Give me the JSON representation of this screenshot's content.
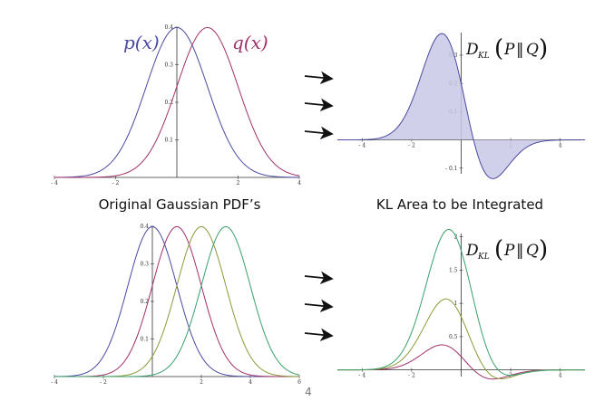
{
  "colors": {
    "p": "#4a4aa0",
    "q": "#a0306a",
    "q2": "#8a9a3a",
    "q3": "#3aa06a",
    "fill": "#c8c8e8",
    "axis": "#333333",
    "arrow": "#111111"
  },
  "captions": {
    "left": "Original Gaussian PDF’s",
    "right": "KL Area to be Integrated"
  },
  "labels": {
    "p": "p(x)",
    "q": "q(x)",
    "kl": {
      "D": "D",
      "sub": "KL",
      "open": "(",
      "P": "P",
      "bars": "‖",
      "Q": "Q",
      "close": ")"
    }
  },
  "page_number": "4",
  "chart_data": [
    {
      "type": "line",
      "panel": "top-left",
      "x_domain": [
        -4,
        4
      ],
      "ylim": [
        0,
        0.4
      ],
      "xticks": [
        -4,
        -2,
        2,
        4
      ],
      "yticks": [
        0.1,
        0.2,
        0.3,
        0.4
      ],
      "series": [
        {
          "name": "p(x)",
          "mean": 0,
          "sd": 1,
          "color_key": "p"
        },
        {
          "name": "q(x)",
          "mean": 1,
          "sd": 1,
          "color_key": "q"
        }
      ]
    },
    {
      "type": "area",
      "panel": "top-right",
      "x_domain": [
        -5,
        5
      ],
      "ylim": [
        -0.12,
        0.38
      ],
      "xticks": [
        -4,
        -2,
        2,
        4
      ],
      "yticks": [
        -0.1,
        0.1,
        0.2,
        0.3
      ],
      "integrand": "p(x) ln(p(x)/q(x))",
      "p": {
        "mean": 0,
        "sd": 1
      },
      "q": {
        "mean": 1,
        "sd": 1
      }
    },
    {
      "type": "line",
      "panel": "bottom-left",
      "x_domain": [
        -4,
        6
      ],
      "ylim": [
        0,
        0.4
      ],
      "xticks": [
        -4,
        -2,
        2,
        4,
        6
      ],
      "yticks": [
        0.1,
        0.2,
        0.3,
        0.4
      ],
      "series": [
        {
          "mean": 0,
          "sd": 1,
          "color_key": "p"
        },
        {
          "mean": 1,
          "sd": 1,
          "color_key": "q"
        },
        {
          "mean": 2,
          "sd": 1,
          "color_key": "q2"
        },
        {
          "mean": 3,
          "sd": 1,
          "color_key": "q3"
        }
      ]
    },
    {
      "type": "line",
      "panel": "bottom-right",
      "x_domain": [
        -5,
        5
      ],
      "ylim": [
        -0.1,
        2.05
      ],
      "xticks": [
        -4,
        -2,
        2,
        4
      ],
      "yticks": [
        0.5,
        1.0,
        1.5,
        2.0
      ],
      "integrand": "p(x) ln(p(x)/q(x))",
      "p": {
        "mean": 0,
        "sd": 1
      },
      "series": [
        {
          "q_mean": 1,
          "q_sd": 1,
          "color_key": "q"
        },
        {
          "q_mean": 2,
          "q_sd": 1,
          "color_key": "q2"
        },
        {
          "q_mean": 3,
          "q_sd": 1,
          "color_key": "q3"
        }
      ]
    }
  ]
}
